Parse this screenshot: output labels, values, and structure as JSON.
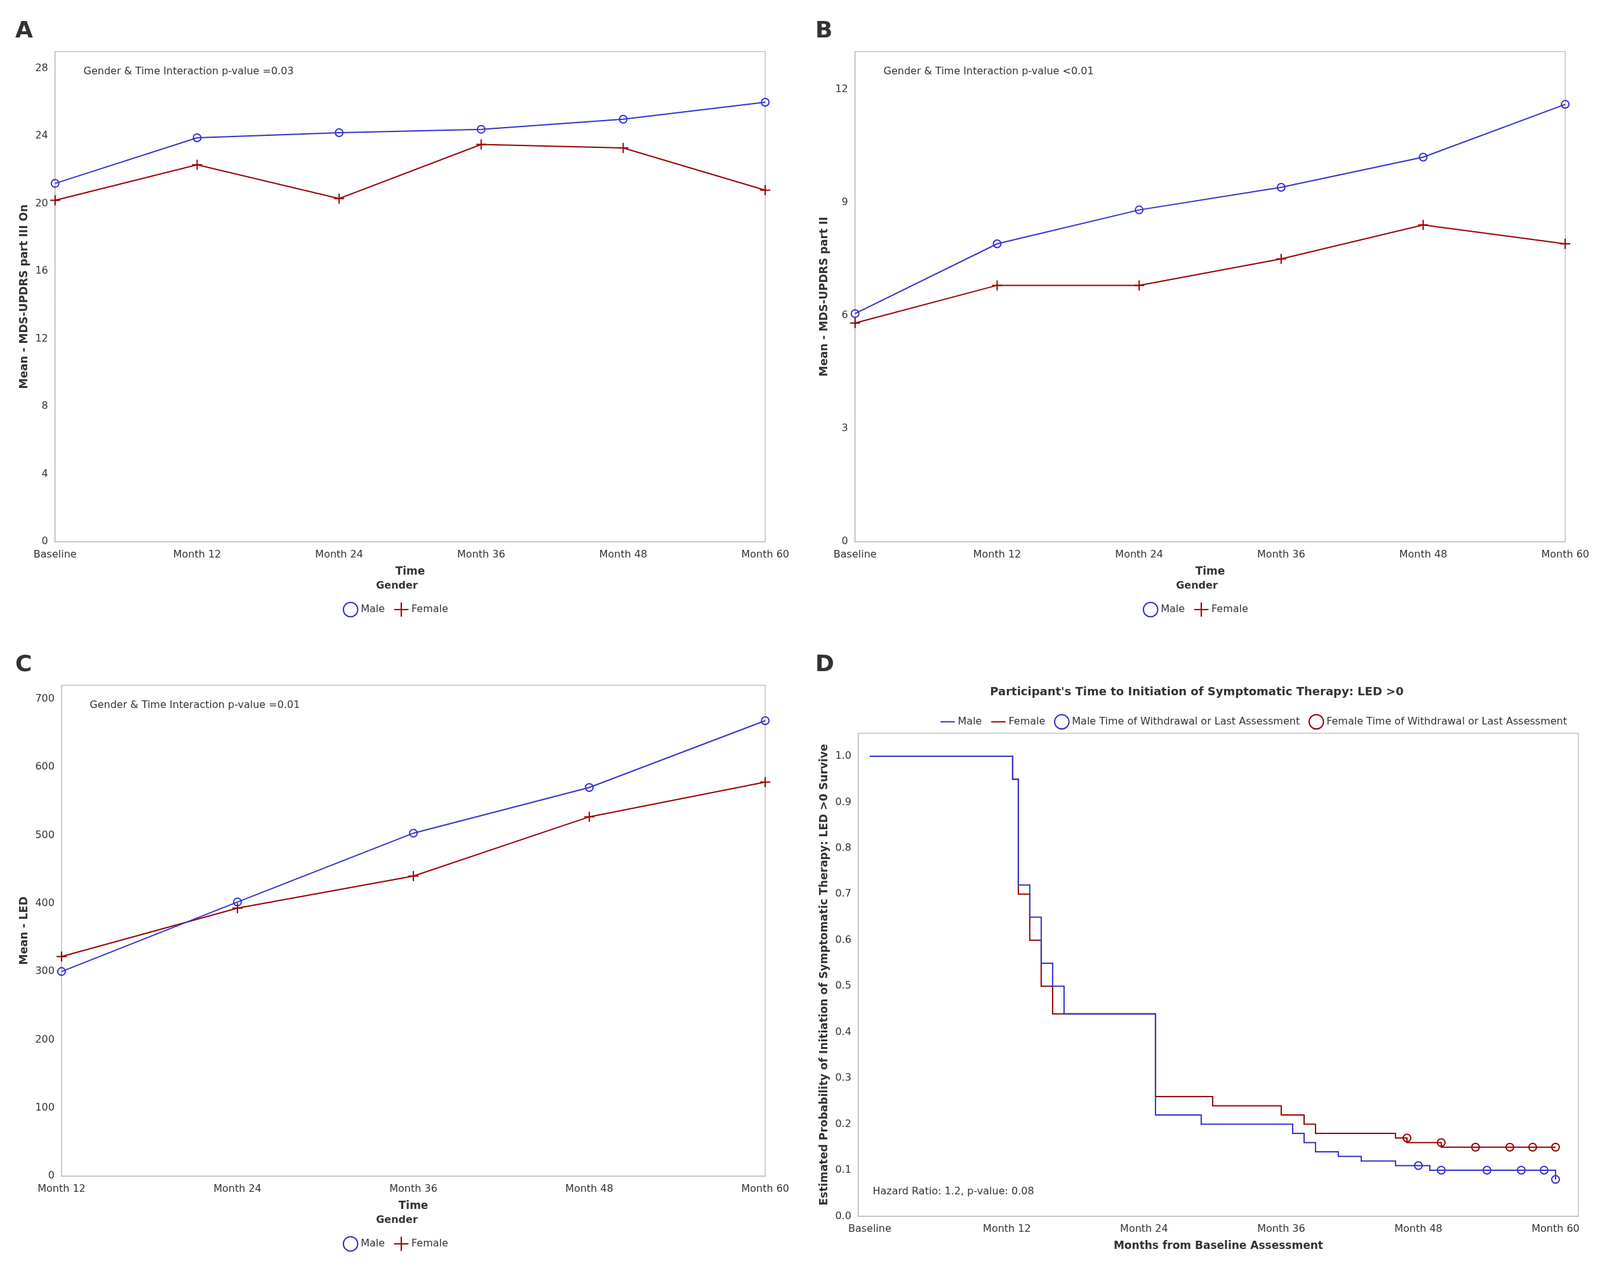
{
  "chart_data": [
    {
      "type": "line",
      "panel_label": "A",
      "annotation": "Gender & Time Interaction p-value =0.03",
      "x_label": "Time",
      "y_label": "Mean - MDS-UPDRS part III On",
      "categories": [
        "Baseline",
        "Month 12",
        "Month 24",
        "Month 36",
        "Month 48",
        "Month 60"
      ],
      "ylim": [
        0,
        29
      ],
      "yticks": [
        0,
        4,
        8,
        12,
        16,
        20,
        24,
        28
      ],
      "grid": false,
      "legend": "bottom",
      "legend_title": "Gender",
      "series": [
        {
          "name": "Male",
          "color": "#3333cc",
          "marker": "circle_open",
          "values": [
            21.2,
            23.9,
            24.2,
            24.4,
            25.0,
            26.0
          ]
        },
        {
          "name": "Female",
          "color": "#990000",
          "marker": "plus",
          "values": [
            20.2,
            22.3,
            20.3,
            23.5,
            23.3,
            20.8
          ]
        }
      ]
    },
    {
      "type": "line",
      "panel_label": "B",
      "annotation": "Gender & Time Interaction p-value <0.01",
      "x_label": "Time",
      "y_label": "Mean - MDS-UPDRS part II",
      "categories": [
        "Baseline",
        "Month 12",
        "Month 24",
        "Month 36",
        "Month 48",
        "Month 60"
      ],
      "ylim": [
        0,
        13
      ],
      "yticks": [
        0,
        3,
        6,
        9,
        12
      ],
      "grid": false,
      "legend": "bottom",
      "legend_title": "Gender",
      "series": [
        {
          "name": "Male",
          "color": "#3333cc",
          "marker": "circle_open",
          "values": [
            6.05,
            7.9,
            8.8,
            9.4,
            10.2,
            11.6
          ]
        },
        {
          "name": "Female",
          "color": "#990000",
          "marker": "plus",
          "values": [
            5.8,
            6.8,
            6.8,
            7.5,
            8.4,
            7.9
          ]
        }
      ]
    },
    {
      "type": "line",
      "panel_label": "C",
      "annotation": "Gender & Time Interaction p-value =0.01",
      "x_label": "Time",
      "y_label": "Mean - LED",
      "categories": [
        "Month 12",
        "Month 24",
        "Month 36",
        "Month 48",
        "Month 60"
      ],
      "ylim": [
        0,
        720
      ],
      "yticks": [
        0,
        100,
        200,
        300,
        400,
        500,
        600,
        700
      ],
      "grid": false,
      "legend": "bottom",
      "legend_title": "Gender",
      "series": [
        {
          "name": "Male",
          "color": "#3333cc",
          "marker": "circle_open",
          "values": [
            300,
            402,
            503,
            570,
            668
          ]
        },
        {
          "name": "Female",
          "color": "#990000",
          "marker": "plus",
          "values": [
            322,
            393,
            440,
            527,
            578
          ]
        }
      ]
    },
    {
      "type": "line",
      "panel_label": "D",
      "title": "Participant's Time to Initiation of Symptomatic Therapy: LED >0",
      "annotation": "Hazard Ratio: 1.2, p-value: 0.08",
      "x_label": "Months from Baseline Assessment",
      "y_label": "Estimated Probability of Initiation of Symptomatic Therapy: LED >0 Survive",
      "xlim": [
        -1,
        62
      ],
      "xticks": [
        {
          "value": 0,
          "label": "Baseline"
        },
        {
          "value": 12,
          "label": "Month 12"
        },
        {
          "value": 24,
          "label": "Month 24"
        },
        {
          "value": 36,
          "label": "Month 36"
        },
        {
          "value": 48,
          "label": "Month 48"
        },
        {
          "value": 60,
          "label": "Month 60"
        }
      ],
      "ylim": [
        0,
        1.05
      ],
      "yticks": [
        {
          "value": 0.0,
          "label": "0.0"
        },
        0.1,
        0.2,
        0.3,
        0.4,
        0.5,
        0.6,
        0.7,
        0.8,
        0.9,
        {
          "value": 1.0,
          "label": "1.0"
        }
      ],
      "grid": false,
      "legend": "upper right",
      "series": [
        {
          "name": "Male",
          "color": "#3333cc",
          "type": "line",
          "line_style": "step",
          "x": [
            0,
            1,
            2,
            3,
            4,
            5,
            6,
            7,
            8,
            9,
            10,
            11,
            12,
            12.5,
            13,
            14,
            15,
            16,
            17,
            18,
            19,
            20,
            21,
            22,
            23,
            24,
            25,
            26,
            27,
            28,
            29,
            30,
            31,
            32,
            33,
            34,
            35,
            36,
            37,
            38,
            39,
            40,
            41,
            42,
            43,
            44,
            45,
            46,
            47,
            48,
            49,
            50,
            51,
            52,
            53,
            54,
            55,
            56,
            57,
            58,
            59,
            60
          ],
          "values": [
            1.0,
            1.0,
            1.0,
            1.0,
            1.0,
            1.0,
            1.0,
            1.0,
            1.0,
            1.0,
            1.0,
            1.0,
            1.0,
            0.95,
            0.72,
            0.65,
            0.55,
            0.5,
            0.44,
            0.44,
            0.44,
            0.44,
            0.44,
            0.44,
            0.44,
            0.44,
            0.22,
            0.22,
            0.22,
            0.22,
            0.2,
            0.2,
            0.2,
            0.2,
            0.2,
            0.2,
            0.2,
            0.2,
            0.18,
            0.16,
            0.14,
            0.14,
            0.13,
            0.13,
            0.12,
            0.12,
            0.12,
            0.11,
            0.11,
            0.11,
            0.1,
            0.1,
            0.1,
            0.1,
            0.1,
            0.1,
            0.1,
            0.1,
            0.1,
            0.1,
            0.1,
            0.08
          ]
        },
        {
          "name": "Female",
          "color": "#990000",
          "type": "line",
          "line_style": "step",
          "x": [
            0,
            1,
            2,
            3,
            4,
            5,
            6,
            7,
            8,
            9,
            10,
            11,
            12,
            12.5,
            13,
            14,
            15,
            16,
            17,
            18,
            19,
            20,
            21,
            22,
            23,
            24,
            25,
            26,
            27,
            28,
            29,
            30,
            31,
            32,
            33,
            34,
            35,
            36,
            37,
            38,
            39,
            40,
            41,
            42,
            43,
            44,
            45,
            46,
            47,
            48,
            49,
            50,
            51,
            52,
            53,
            54,
            55,
            56,
            57,
            58,
            59,
            60
          ],
          "values": [
            1.0,
            1.0,
            1.0,
            1.0,
            1.0,
            1.0,
            1.0,
            1.0,
            1.0,
            1.0,
            1.0,
            1.0,
            1.0,
            0.95,
            0.7,
            0.6,
            0.5,
            0.44,
            0.44,
            0.44,
            0.44,
            0.44,
            0.44,
            0.44,
            0.44,
            0.44,
            0.26,
            0.26,
            0.26,
            0.26,
            0.26,
            0.24,
            0.24,
            0.24,
            0.24,
            0.24,
            0.24,
            0.22,
            0.22,
            0.2,
            0.18,
            0.18,
            0.18,
            0.18,
            0.18,
            0.18,
            0.18,
            0.17,
            0.16,
            0.16,
            0.16,
            0.15,
            0.15,
            0.15,
            0.15,
            0.15,
            0.15,
            0.15,
            0.15,
            0.15,
            0.15,
            0.15
          ]
        },
        {
          "name": "Male Time of Withdrawal or Last Assessment",
          "color": "#3333cc",
          "type": "scatter",
          "marker": "circle_open",
          "x": [
            48,
            50,
            54,
            57,
            59,
            60
          ],
          "values": [
            0.11,
            0.1,
            0.1,
            0.1,
            0.1,
            0.08
          ]
        },
        {
          "name": "Female Time of Withdrawal or Last Assessment",
          "color": "#990000",
          "type": "scatter",
          "marker": "circle_open",
          "x": [
            47,
            50,
            53,
            56,
            58,
            60
          ],
          "values": [
            0.17,
            0.16,
            0.15,
            0.15,
            0.15,
            0.15
          ]
        }
      ]
    }
  ]
}
